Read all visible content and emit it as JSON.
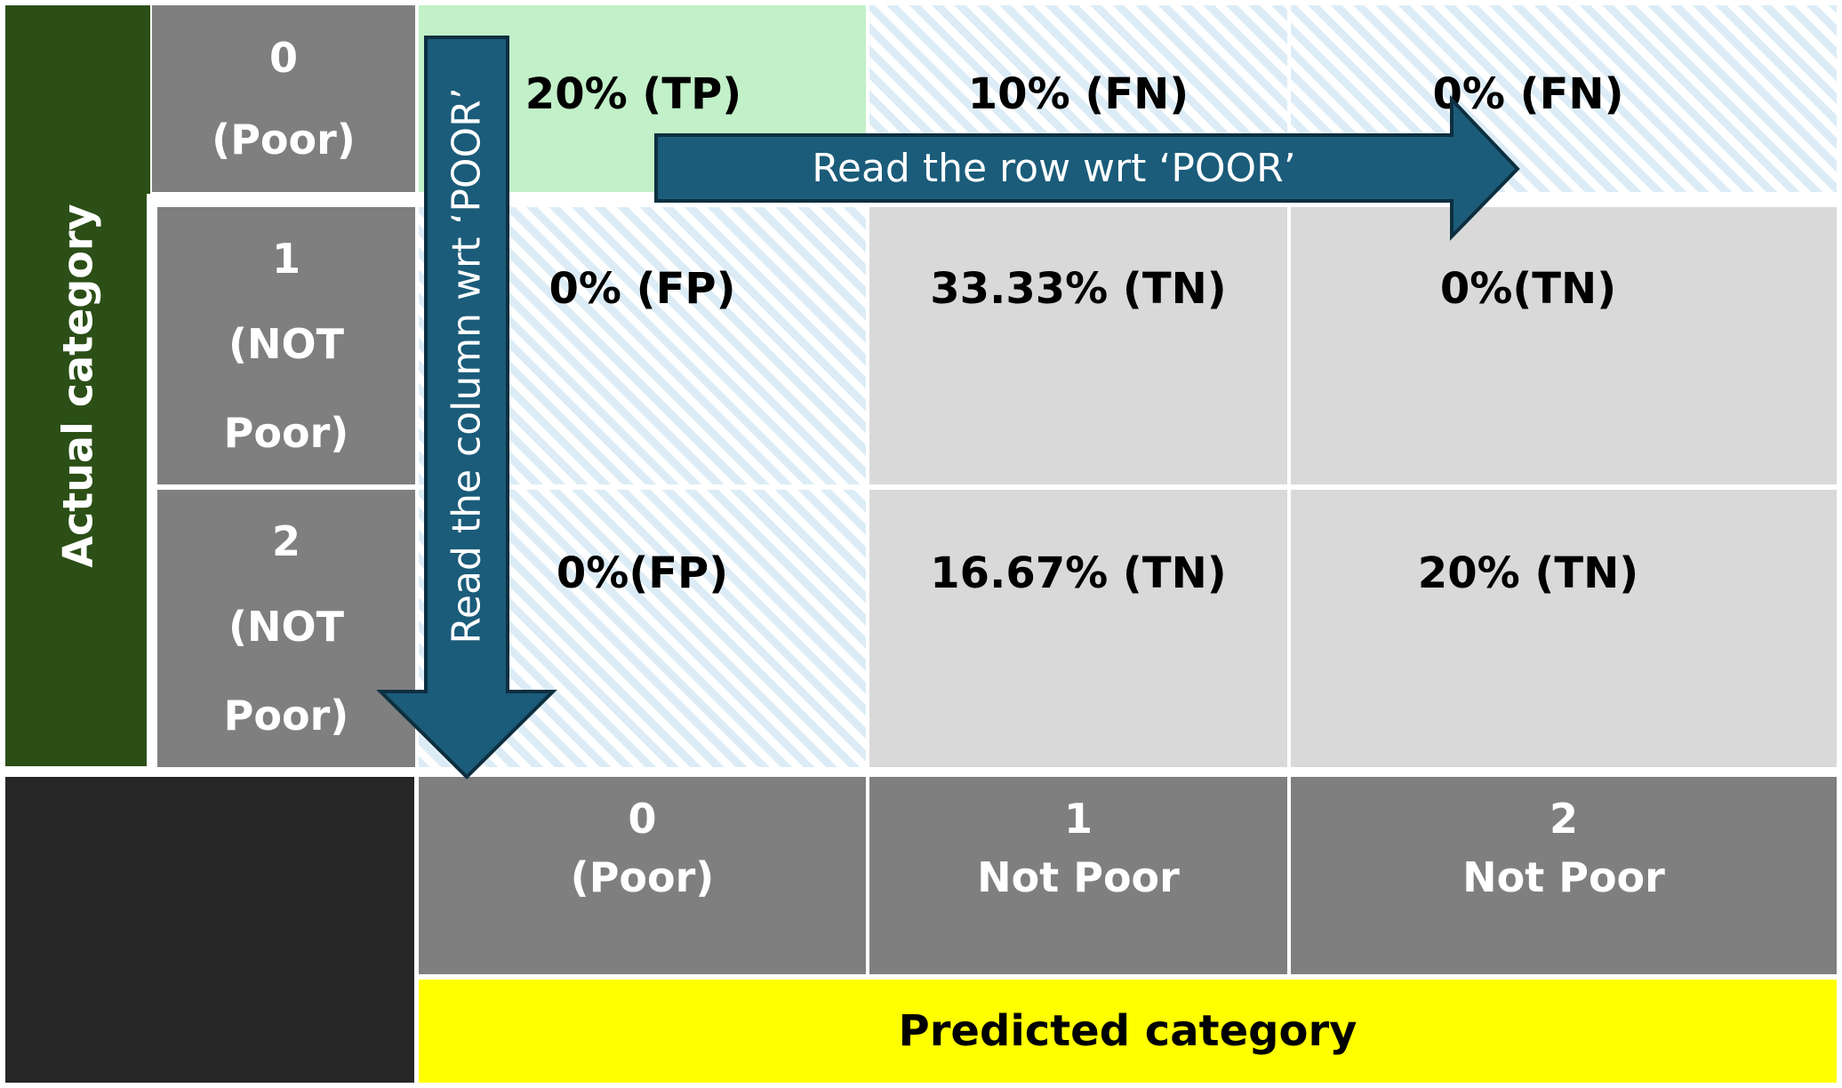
{
  "actual_axis": {
    "label": "Actual category",
    "color": "#2b4f16"
  },
  "predicted_axis": {
    "label": "Predicted category",
    "color": "#ffff00"
  },
  "corner_color": "#262626",
  "header_color": "#7f7f7f",
  "arrow_color": "#1b5c7a",
  "row_headers": [
    {
      "num": "0",
      "line1": "(Poor)",
      "line2": ""
    },
    {
      "num": "1",
      "line1": "(NOT",
      "line2": "Poor)"
    },
    {
      "num": "2",
      "line1": "(NOT",
      "line2": "Poor)"
    }
  ],
  "column_headers": [
    {
      "num": "0",
      "name": "(Poor)"
    },
    {
      "num": "1",
      "name": "Not Poor"
    },
    {
      "num": "2",
      "name": "Not Poor"
    }
  ],
  "cells": [
    [
      "20% (TP)",
      "10% (FN)",
      "0% (FN)"
    ],
    [
      "0% (FP)",
      "33.33% (TN)",
      "0%(TN)"
    ],
    [
      "0%(FP)",
      "16.67% (TN)",
      "20% (TN)"
    ]
  ],
  "arrows": {
    "row": "Read the row wrt ‘POOR’",
    "column": "Read the column wrt ‘POOR’"
  }
}
